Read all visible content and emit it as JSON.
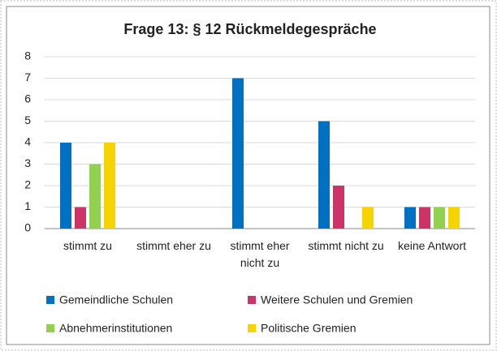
{
  "chart_data": {
    "type": "bar",
    "title": "Frage 13: § 12 Rückmeldegespräche",
    "categories": [
      "stimmt zu",
      "stimmt eher zu",
      "stimmt eher nicht zu",
      "stimmt nicht zu",
      "keine Antwort"
    ],
    "series": [
      {
        "name": "Gemeindliche Schulen",
        "color": "#0070c0",
        "values": [
          4,
          0,
          7,
          5,
          1
        ]
      },
      {
        "name": "Weitere Schulen und Gremien",
        "color": "#cc3366",
        "values": [
          1,
          0,
          0,
          2,
          1
        ]
      },
      {
        "name": "Abnehmerinstitutionen",
        "color": "#92d050",
        "values": [
          3,
          0,
          0,
          0,
          1
        ]
      },
      {
        "name": "Politische Gremien",
        "color": "#f5d400",
        "values": [
          4,
          0,
          0,
          1,
          1
        ]
      }
    ],
    "ylim": [
      0,
      8
    ],
    "yticks": [
      0,
      1,
      2,
      3,
      4,
      5,
      6,
      7,
      8
    ],
    "grid": true,
    "legend": "bottom"
  }
}
